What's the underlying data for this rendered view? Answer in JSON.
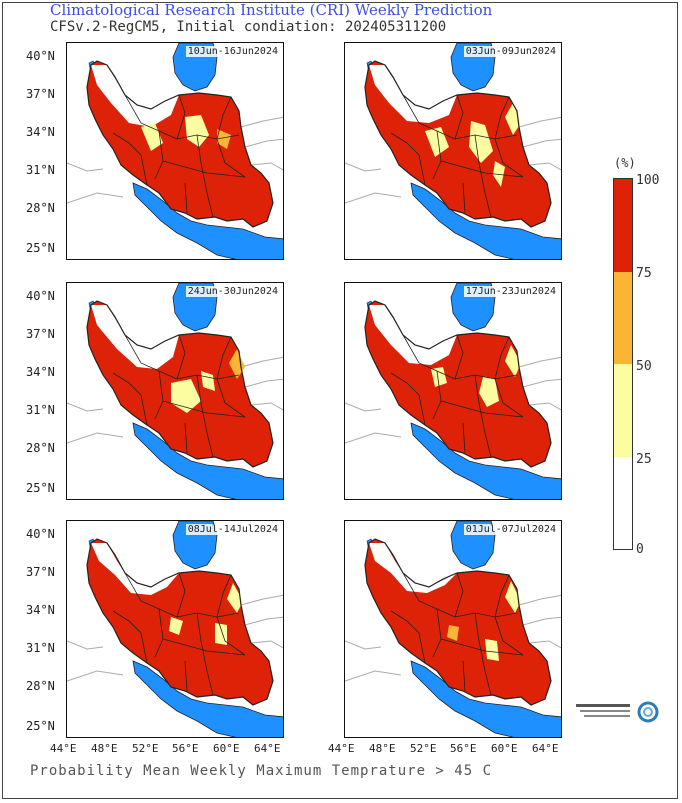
{
  "header": {
    "title": "Climatological Research Institute (CRI) Weekly Prediction",
    "subtitle": "CFSv.2-RegCM5, Initial condiation: 2024053112 00"
  },
  "panels": [
    {
      "date": "10Jun-16Jun2024"
    },
    {
      "date": "03Jun-09Jun2024"
    },
    {
      "date": "24Jun-30Jun2024"
    },
    {
      "date": "17Jun-23Jun2024"
    },
    {
      "date": "08Jul-14Jul2024"
    },
    {
      "date": "01Jul-07Jul2024"
    }
  ],
  "axes": {
    "y_ticks": [
      "40°N",
      "37°N",
      "34°N",
      "31°N",
      "28°N",
      "25°N"
    ],
    "x_ticks": [
      "44°E",
      "48°E",
      "52°E",
      "56°E",
      "60°E",
      "64°E"
    ]
  },
  "legend": {
    "unit": "(%)",
    "ticks": [
      "100",
      "75",
      "50",
      "25",
      "0"
    ],
    "colors": [
      "#dd2208",
      "#fbb535",
      "#fcfca0",
      "#ffffff"
    ]
  },
  "footer": "Probability Mean Weekly Maximum Temprature > 45 C",
  "colors": {
    "sea": "#1e90ff",
    "high": "#dd2208",
    "mid": "#fbb535",
    "low": "#fcfca0",
    "border": "#222222",
    "title": "#3b4fe0"
  }
}
